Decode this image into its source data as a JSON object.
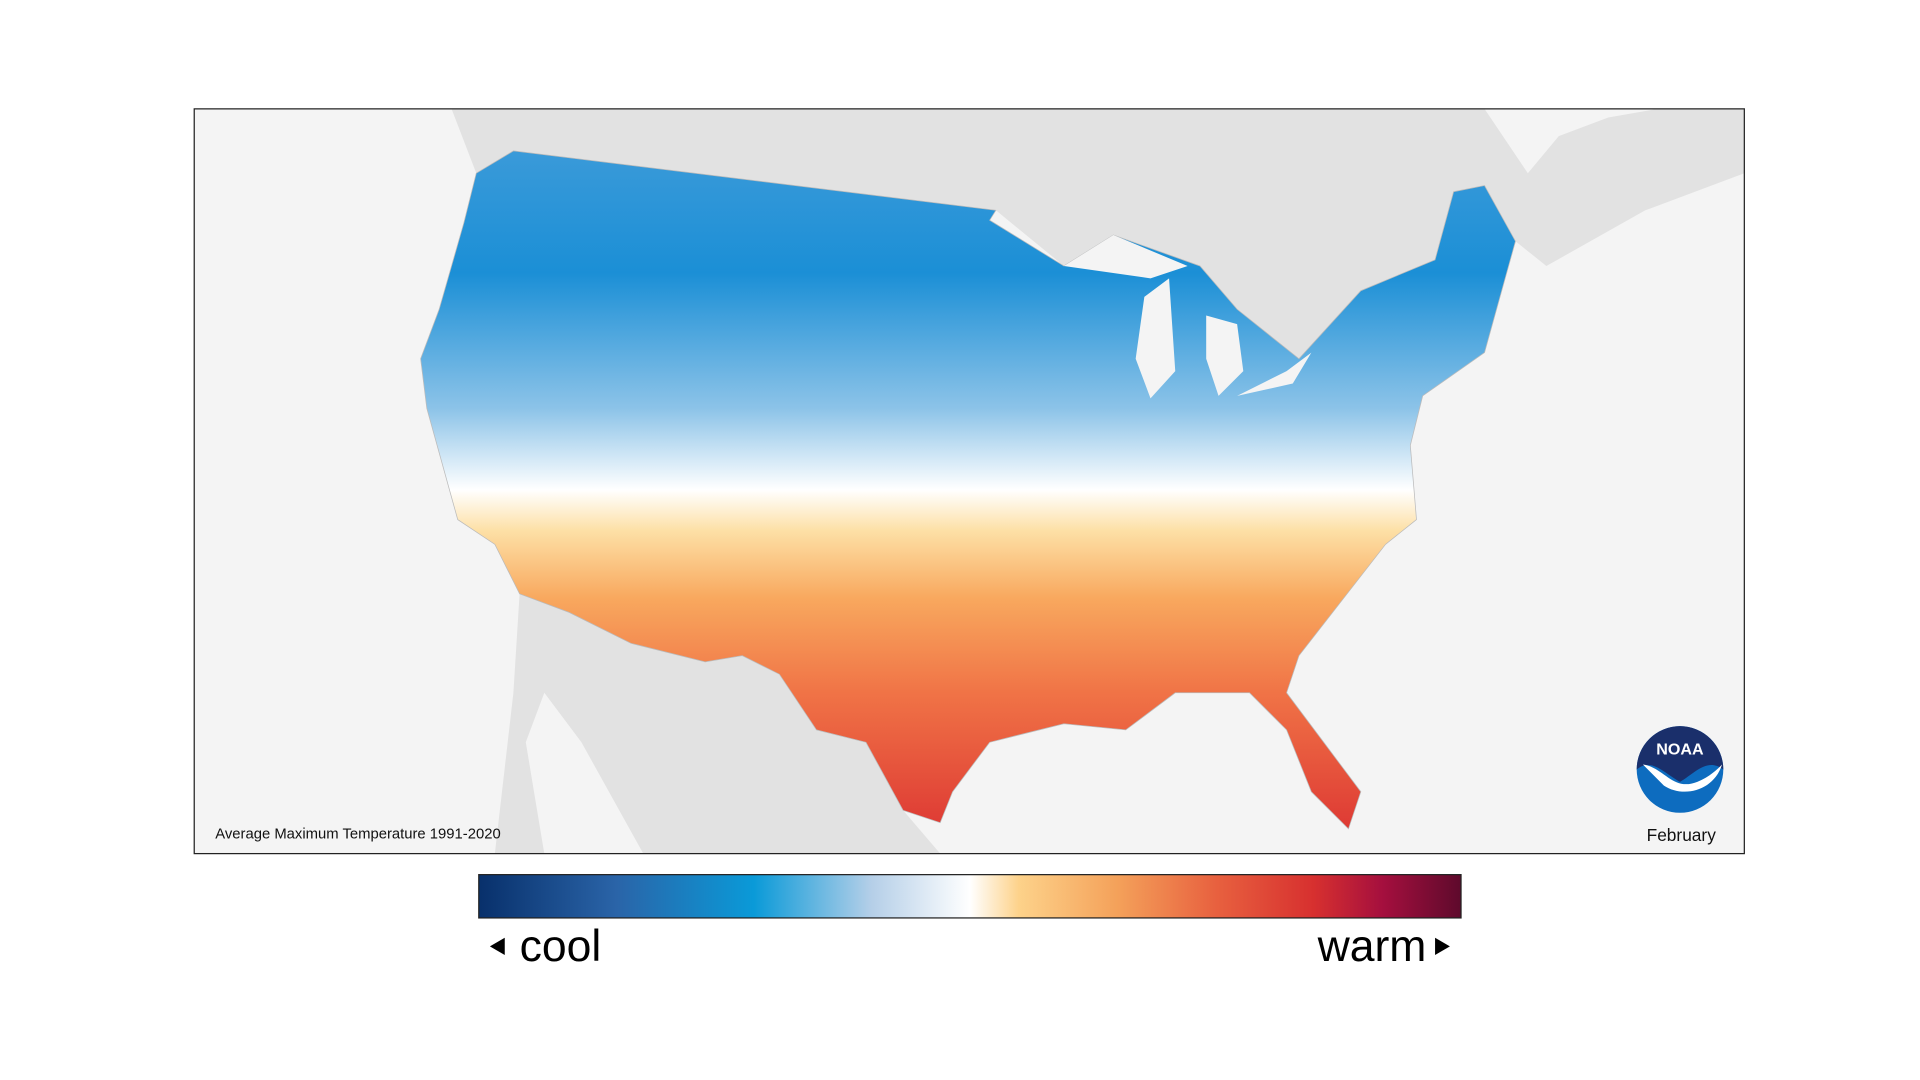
{
  "map": {
    "caption": "Average Maximum Temperature 1991-2020",
    "month": "February",
    "logo": "NOAA"
  },
  "legend": {
    "low": "cool",
    "high": "warm"
  }
}
